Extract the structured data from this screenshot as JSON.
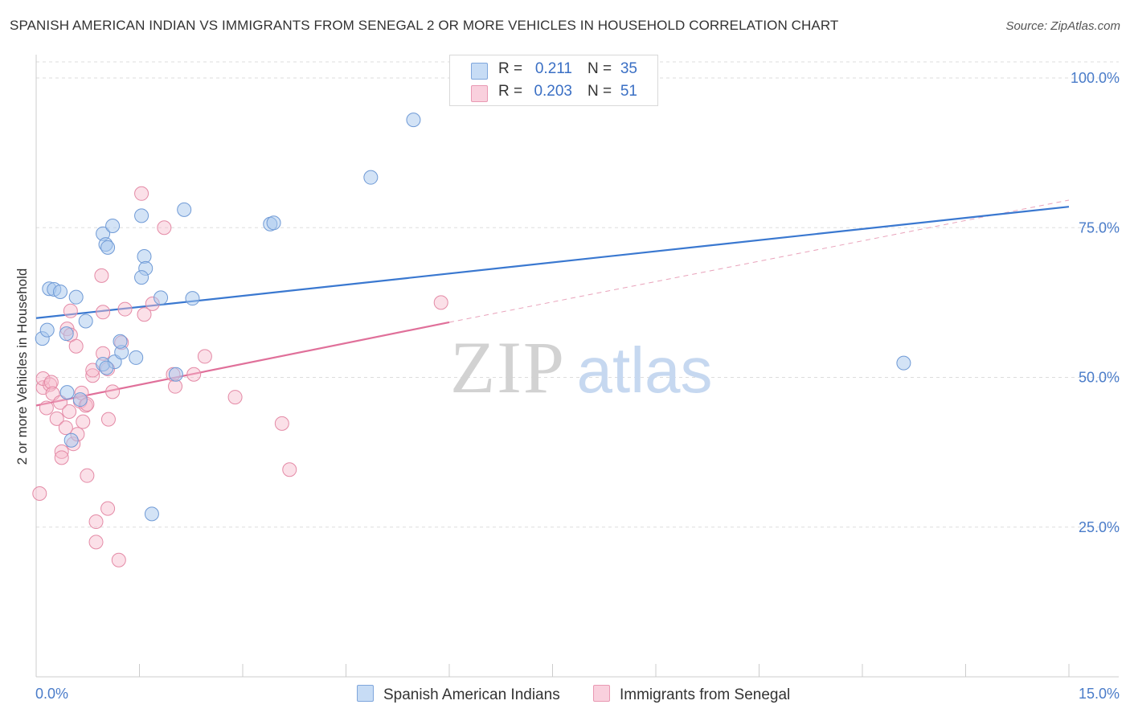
{
  "header": {
    "title": "SPANISH AMERICAN INDIAN VS IMMIGRANTS FROM SENEGAL 2 OR MORE VEHICLES IN HOUSEHOLD CORRELATION CHART",
    "source": "Source: ZipAtlas.com"
  },
  "watermark": {
    "zip": "ZIP",
    "atlas": "atlas"
  },
  "legend": {
    "rows": [
      {
        "r_label": "R =",
        "r_value": "0.211",
        "n_label": "N =",
        "n_value": "35",
        "color": "#a7c6ee"
      },
      {
        "r_label": "R =",
        "r_value": "0.203",
        "n_label": "N =",
        "n_value": "51",
        "color": "#f4b6c9"
      }
    ]
  },
  "chart_data": {
    "type": "scatter",
    "title": "SPANISH AMERICAN INDIAN VS IMMIGRANTS FROM SENEGAL 2 OR MORE VEHICLES IN HOUSEHOLD CORRELATION CHART",
    "xlabel": "",
    "ylabel": "2 or more Vehicles in Household",
    "xlim": [
      0,
      15
    ],
    "ylim": [
      0,
      105
    ],
    "x_tick_labels": [
      "0.0%",
      "15.0%"
    ],
    "y_ticks": [
      25,
      50,
      75,
      100
    ],
    "y_tick_labels": [
      "25.0%",
      "50.0%",
      "75.0%",
      "100.0%"
    ],
    "grid": true,
    "legend_position": "top-center",
    "series": [
      {
        "name": "Spanish American Indians",
        "color": "#a7c6ee",
        "stroke": "#6f9ad6",
        "line_color": "#3a78d0",
        "r": 0.211,
        "n": 35,
        "trend": {
          "x": [
            0.0,
            15.0
          ],
          "y": [
            59.9,
            78.5
          ]
        },
        "points": [
          [
            0.09,
            56.5
          ],
          [
            0.16,
            57.9
          ],
          [
            0.19,
            64.8
          ],
          [
            0.26,
            64.7
          ],
          [
            0.35,
            64.3
          ],
          [
            0.44,
            57.3
          ],
          [
            0.58,
            63.4
          ],
          [
            0.72,
            59.4
          ],
          [
            0.97,
            74.0
          ],
          [
            1.11,
            75.3
          ],
          [
            1.01,
            72.2
          ],
          [
            1.04,
            71.7
          ],
          [
            1.53,
            77.0
          ],
          [
            1.57,
            70.2
          ],
          [
            1.59,
            68.2
          ],
          [
            1.53,
            66.7
          ],
          [
            1.81,
            63.3
          ],
          [
            2.15,
            78.0
          ],
          [
            2.27,
            63.2
          ],
          [
            3.4,
            75.6
          ],
          [
            3.45,
            75.8
          ],
          [
            4.86,
            83.4
          ],
          [
            5.48,
            93.0
          ],
          [
            0.97,
            52.2
          ],
          [
            1.14,
            52.6
          ],
          [
            1.24,
            54.2
          ],
          [
            1.22,
            56.0
          ],
          [
            1.45,
            53.3
          ],
          [
            2.03,
            50.5
          ],
          [
            0.64,
            46.3
          ],
          [
            0.45,
            47.5
          ],
          [
            0.51,
            39.5
          ],
          [
            1.68,
            27.2
          ],
          [
            12.6,
            52.4
          ],
          [
            1.02,
            51.6
          ]
        ]
      },
      {
        "name": "Immigrants from Senegal",
        "color": "#f4b6c9",
        "stroke": "#e48aa6",
        "line_color": "#e0709a",
        "r": 0.203,
        "n": 51,
        "trend": {
          "x": [
            0.0,
            6.0
          ],
          "y": [
            45.3,
            59.2
          ]
        },
        "trend_extension": {
          "x": [
            6.0,
            15.0
          ],
          "y": [
            59.2,
            79.6
          ]
        },
        "points": [
          [
            0.05,
            30.6
          ],
          [
            0.1,
            48.3
          ],
          [
            0.1,
            49.8
          ],
          [
            0.15,
            44.9
          ],
          [
            0.2,
            48.8
          ],
          [
            0.22,
            49.2
          ],
          [
            0.24,
            47.3
          ],
          [
            0.3,
            43.1
          ],
          [
            0.35,
            45.8
          ],
          [
            0.37,
            37.6
          ],
          [
            0.37,
            36.6
          ],
          [
            0.43,
            41.6
          ],
          [
            0.45,
            58.1
          ],
          [
            0.5,
            57.1
          ],
          [
            0.5,
            61.1
          ],
          [
            0.54,
            38.9
          ],
          [
            0.58,
            55.2
          ],
          [
            0.6,
            40.5
          ],
          [
            0.64,
            46.0
          ],
          [
            0.66,
            47.4
          ],
          [
            0.72,
            45.3
          ],
          [
            0.74,
            33.6
          ],
          [
            0.74,
            45.5
          ],
          [
            0.82,
            50.3
          ],
          [
            0.82,
            51.2
          ],
          [
            0.87,
            25.9
          ],
          [
            0.87,
            22.5
          ],
          [
            0.95,
            67.0
          ],
          [
            0.97,
            54.0
          ],
          [
            0.97,
            60.9
          ],
          [
            1.04,
            51.4
          ],
          [
            1.04,
            28.1
          ],
          [
            1.05,
            43.0
          ],
          [
            1.11,
            47.6
          ],
          [
            1.2,
            19.5
          ],
          [
            1.24,
            55.8
          ],
          [
            1.29,
            61.4
          ],
          [
            1.53,
            80.7
          ],
          [
            1.57,
            60.5
          ],
          [
            1.69,
            62.3
          ],
          [
            1.86,
            75.0
          ],
          [
            1.99,
            50.5
          ],
          [
            2.02,
            48.5
          ],
          [
            2.29,
            50.5
          ],
          [
            2.45,
            53.5
          ],
          [
            2.89,
            46.7
          ],
          [
            3.57,
            42.3
          ],
          [
            3.68,
            34.6
          ],
          [
            5.88,
            62.5
          ],
          [
            0.68,
            42.6
          ],
          [
            0.48,
            44.3
          ]
        ]
      }
    ]
  },
  "bottom_legend": {
    "series_a": "Spanish American Indians",
    "series_b": "Immigrants from Senegal"
  }
}
